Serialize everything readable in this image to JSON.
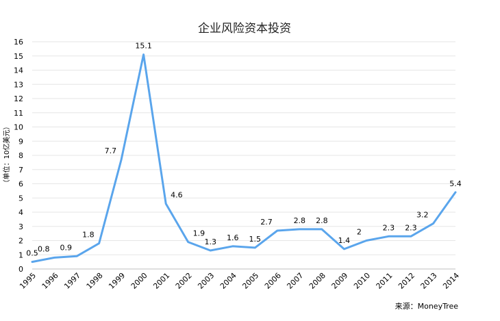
{
  "chart_data": {
    "type": "line",
    "title": "企业风险资本投资",
    "ylabel": "（单位：10亿美元）",
    "source": "来源：MoneyTree",
    "ylim": [
      0,
      16
    ],
    "yticks": [
      0,
      1,
      2,
      3,
      4,
      5,
      6,
      7,
      8,
      9,
      10,
      11,
      12,
      13,
      14,
      15,
      16
    ],
    "grid": true,
    "categories": [
      "1995",
      "1996",
      "1997",
      "1998",
      "1999",
      "2000",
      "2001",
      "2002",
      "2003",
      "2004",
      "2005",
      "2006",
      "2007",
      "2008",
      "2009",
      "2010",
      "2011",
      "2012",
      "2013",
      "2014"
    ],
    "values": [
      0.5,
      0.8,
      0.9,
      1.8,
      7.7,
      15.1,
      4.6,
      1.9,
      1.3,
      1.6,
      1.5,
      2.7,
      2.8,
      2.8,
      1.4,
      2,
      2.3,
      2.3,
      3.2,
      5.4
    ],
    "value_labels": [
      "0.5",
      "0.8",
      "0.9",
      "1.8",
      "7.7",
      "15.1",
      "4.6",
      "1.9",
      "1.3",
      "1.6",
      "1.5",
      "2.7",
      "2.8",
      "2.8",
      "1.4",
      "2",
      "2.3",
      "2.3",
      "3.2",
      "5.4"
    ],
    "line_color": "#5aa5ec"
  }
}
